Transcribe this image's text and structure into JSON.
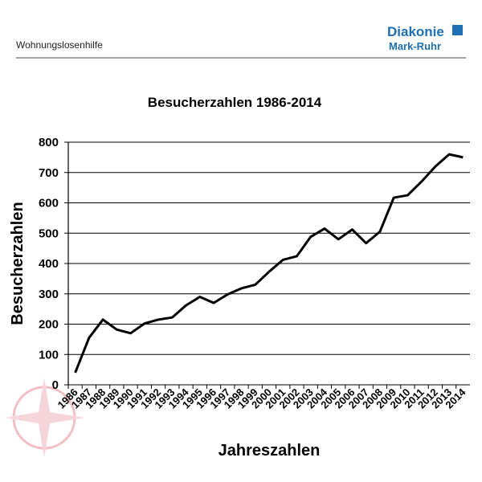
{
  "header": {
    "section": "Wohnungslosenhilfe",
    "logo_name": "Diakonie",
    "logo_sub": "Mark-Ruhr"
  },
  "chart_data": {
    "type": "line",
    "title": "Besucherzahlen 1986-2014",
    "y_label": "Besucherzahlen",
    "x_label": "Jahreszahlen",
    "categories": [
      "1986",
      "1987",
      "1988",
      "1989",
      "1990",
      "1991",
      "1992",
      "1993",
      "1994",
      "1995",
      "1996",
      "1997",
      "1998",
      "1999",
      "2000",
      "2001",
      "2002",
      "2003",
      "2004",
      "2005",
      "2006",
      "2007",
      "2008",
      "2009",
      "2010",
      "2011",
      "2012",
      "2013",
      "2014"
    ],
    "series": [
      {
        "name": "Besucherzahlen",
        "color": "#000000",
        "values": [
          40,
          155,
          215,
          182,
          170,
          202,
          215,
          222,
          262,
          290,
          270,
          298,
          318,
          330,
          373,
          412,
          424,
          488,
          515,
          480,
          512,
          467,
          505,
          617,
          625,
          670,
          720,
          760,
          750
        ]
      }
    ],
    "ylim": [
      0,
      800
    ],
    "yticks": [
      0,
      100,
      200,
      300,
      400,
      500,
      600,
      700,
      800
    ],
    "grid": true
  }
}
